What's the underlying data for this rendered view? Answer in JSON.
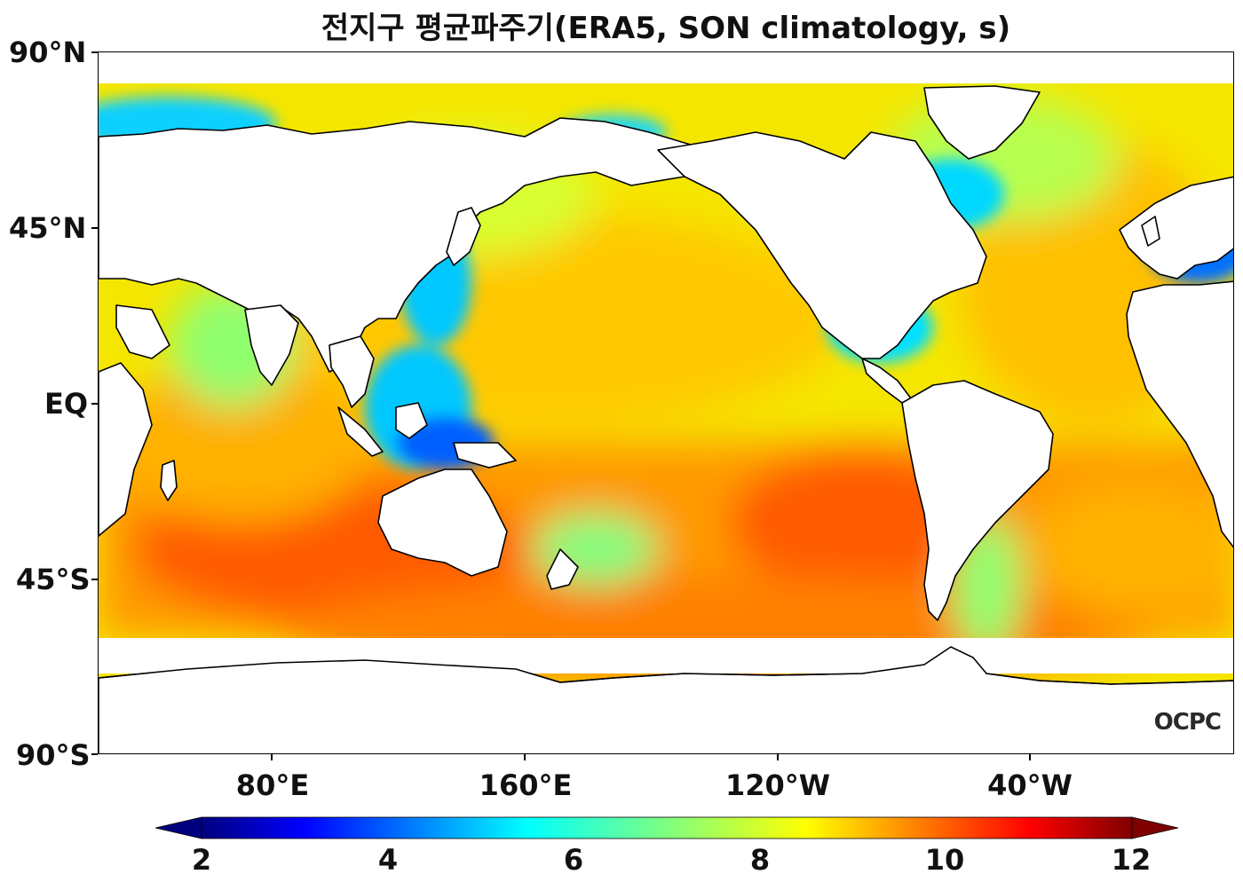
{
  "title": "전지구 평균파주기(ERA5, SON climatology, s)",
  "y_axis_labels": [
    "90°N",
    "45°N",
    "EQ",
    "45°S",
    "90°S"
  ],
  "x_axis_labels": [
    "80°E",
    "160°E",
    "120°W",
    "40°W"
  ],
  "logo": "OCPC",
  "colorbar": {
    "labels": [
      "2",
      "4",
      "6",
      "8",
      "10",
      "12"
    ],
    "min": 2,
    "max": 12,
    "extend": "both",
    "colormap": "jet",
    "colors": [
      "#00007f",
      "#0000ff",
      "#007fff",
      "#00ffff",
      "#7fff7f",
      "#ffff00",
      "#ff7f00",
      "#ff0000",
      "#7f0000"
    ]
  },
  "map": {
    "projection": "PlateCarree",
    "central_longitude": 200,
    "land_color": "#ffffff",
    "coastline_color": "#000000",
    "variable": "mean wave period (s)"
  }
}
